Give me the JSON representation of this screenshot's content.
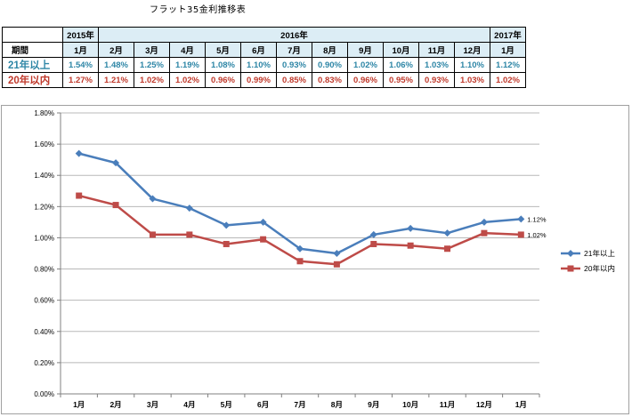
{
  "title": "フラット35金利推移表",
  "table": {
    "period_label": "期間",
    "year_groups": [
      {
        "label": "2015年"
      },
      {
        "label": "2016年"
      },
      {
        "label": "2017年"
      }
    ],
    "months": [
      "1月",
      "2月",
      "3月",
      "4月",
      "5月",
      "6月",
      "7月",
      "8月",
      "9月",
      "10月",
      "11月",
      "12月",
      "1月"
    ],
    "rows": [
      {
        "label": "21年以上",
        "values": [
          "1.54%",
          "1.48%",
          "1.25%",
          "1.19%",
          "1.08%",
          "1.10%",
          "0.93%",
          "0.90%",
          "1.02%",
          "1.06%",
          "1.03%",
          "1.10%",
          "1.12%"
        ]
      },
      {
        "label": "20年以内",
        "values": [
          "1.27%",
          "1.21%",
          "1.02%",
          "1.02%",
          "0.96%",
          "0.99%",
          "0.85%",
          "0.83%",
          "0.96%",
          "0.95%",
          "0.93%",
          "1.03%",
          "1.02%"
        ]
      }
    ]
  },
  "chart_data": {
    "type": "line",
    "categories": [
      "1月",
      "2月",
      "3月",
      "4月",
      "5月",
      "6月",
      "7月",
      "8月",
      "9月",
      "10月",
      "11月",
      "12月",
      "1月"
    ],
    "y_tick_labels": [
      "0.00%",
      "0.20%",
      "0.40%",
      "0.60%",
      "0.80%",
      "1.00%",
      "1.20%",
      "1.40%",
      "1.60%",
      "1.80%"
    ],
    "ylim": [
      0,
      1.8
    ],
    "grid": true,
    "legend_position": "right",
    "series": [
      {
        "name": "21年以上",
        "color": "#4a7ebb",
        "marker": "diamond",
        "values": [
          1.54,
          1.48,
          1.25,
          1.19,
          1.08,
          1.1,
          0.93,
          0.9,
          1.02,
          1.06,
          1.03,
          1.1,
          1.12
        ],
        "end_label": "1.12%"
      },
      {
        "name": "20年以内",
        "color": "#be4b48",
        "marker": "square",
        "values": [
          1.27,
          1.21,
          1.02,
          1.02,
          0.96,
          0.99,
          0.85,
          0.83,
          0.96,
          0.95,
          0.93,
          1.03,
          1.02
        ],
        "end_label": "1.02%"
      }
    ]
  }
}
